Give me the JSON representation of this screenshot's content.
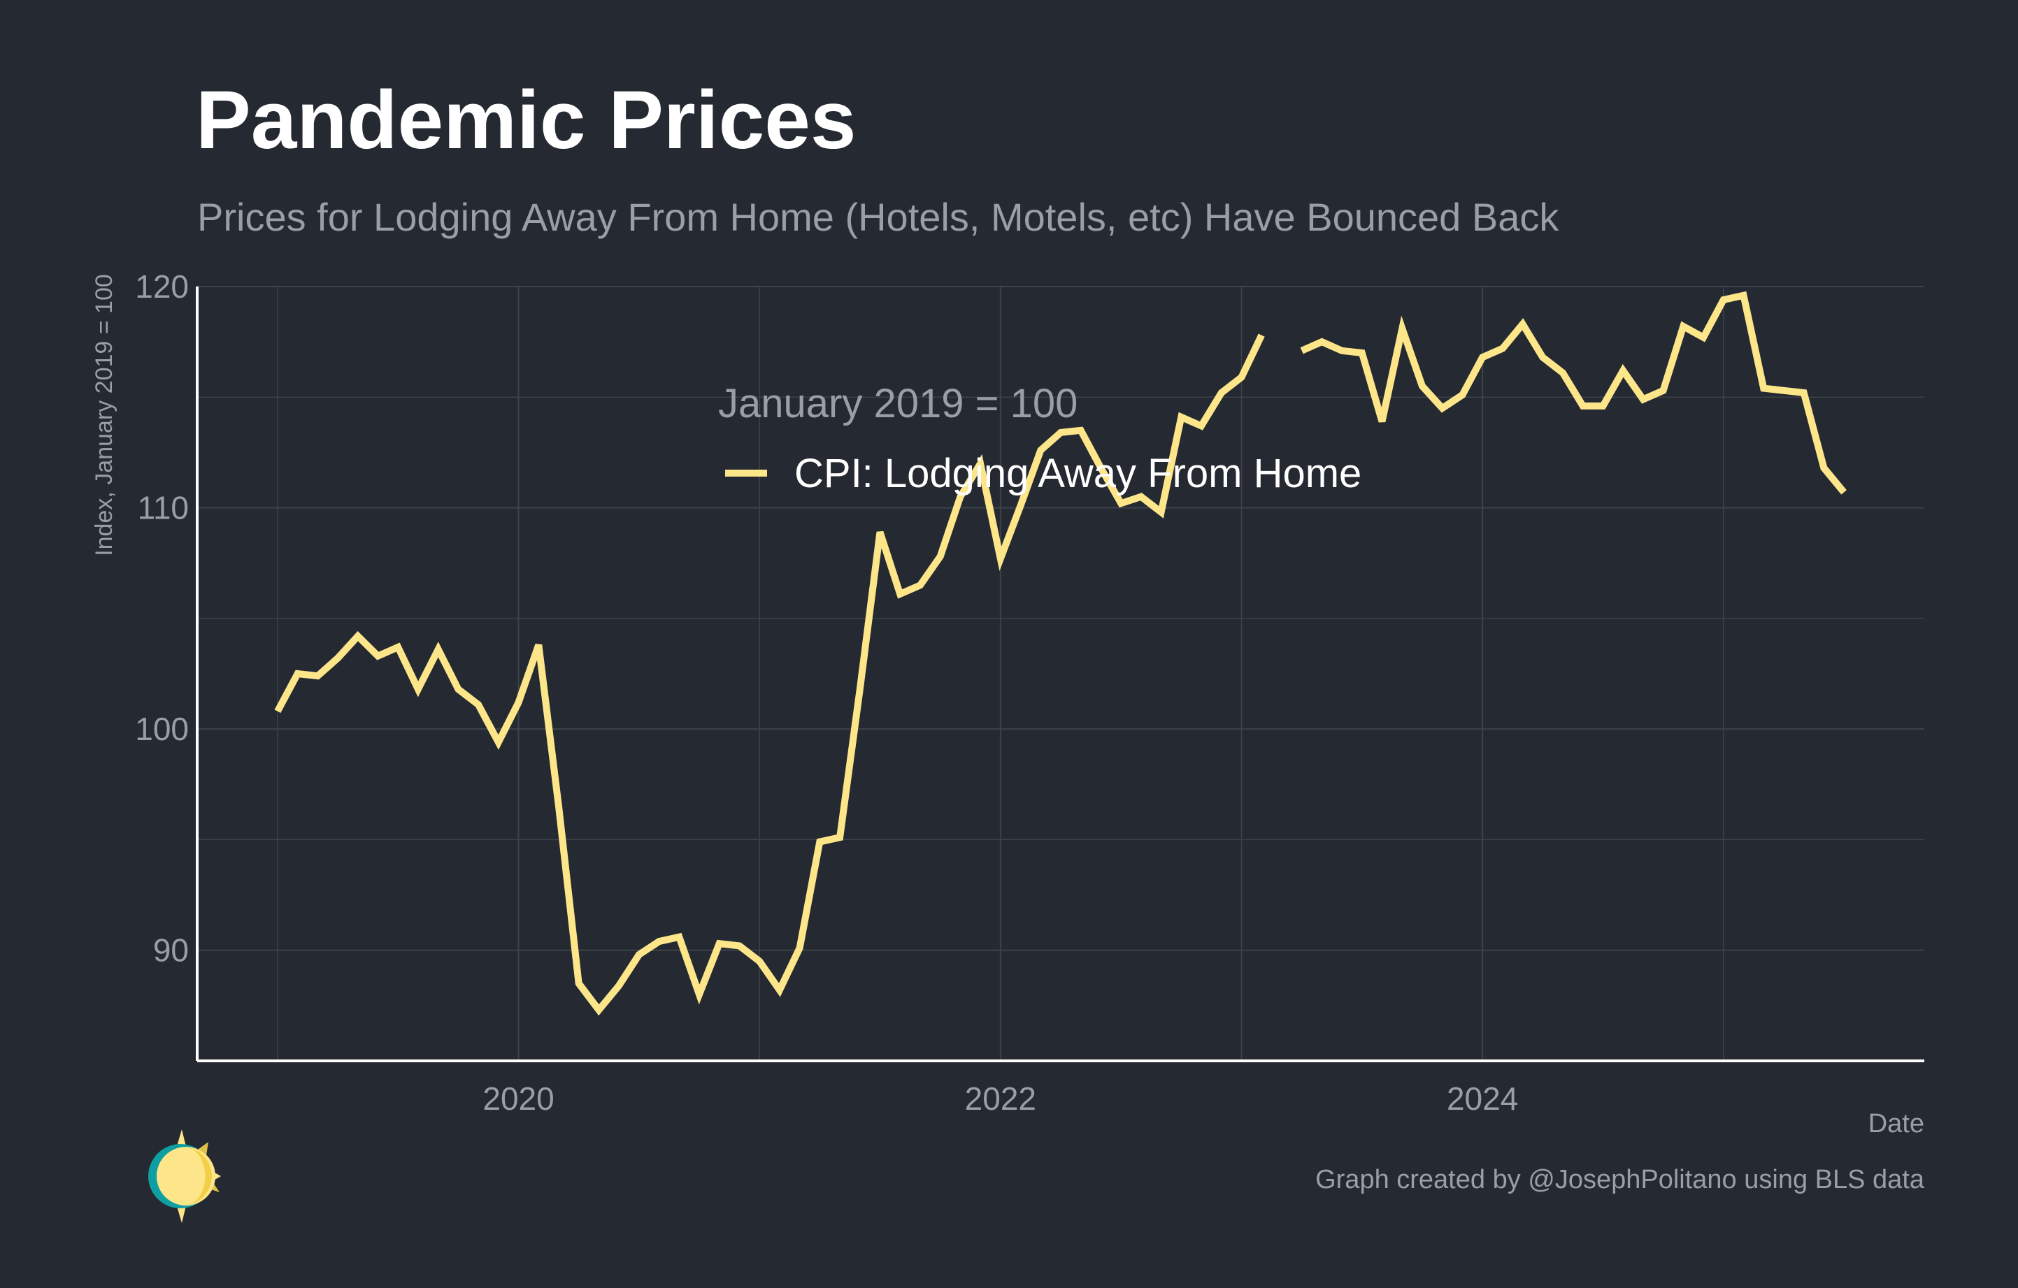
{
  "title": "Pandemic Prices",
  "subtitle": "Prices for Lodging Away From Home (Hotels, Motels, etc) Have Bounced Back",
  "caption": "Graph created by @JosephPolitano using BLS data",
  "logo_icon": "sun-moon-logo-icon",
  "colors": {
    "background": "#252931",
    "line": "#FDE68A",
    "grid": "#3d424b",
    "axis": "#ffffff",
    "tick_text": "#9a9ea6",
    "legend_text": "#ffffff"
  },
  "chart_data": {
    "type": "line",
    "xlabel": "Date",
    "ylabel": "Index, January 2019 = 100",
    "legend_title": "January 2019 = 100",
    "legend_position": "top-center",
    "grid": true,
    "ylim": [
      85,
      120
    ],
    "xlim": [
      "2018-09",
      "2025-11"
    ],
    "y_ticks": [
      90,
      100,
      110,
      120
    ],
    "y_tick_labels": [
      "90",
      "100",
      "110",
      "120"
    ],
    "x_ticks": [
      "2020-01",
      "2022-01",
      "2024-01"
    ],
    "x_tick_labels": [
      "2020",
      "2022",
      "2024"
    ],
    "series": [
      {
        "name": "CPI: Lodging Away From Home",
        "points": [
          [
            "2019-01",
            100.8
          ],
          [
            "2019-02",
            102.5
          ],
          [
            "2019-03",
            102.4
          ],
          [
            "2019-04",
            103.2
          ],
          [
            "2019-05",
            104.2
          ],
          [
            "2019-06",
            103.3
          ],
          [
            "2019-07",
            103.7
          ],
          [
            "2019-08",
            101.8
          ],
          [
            "2019-09",
            103.6
          ],
          [
            "2019-10",
            101.8
          ],
          [
            "2019-11",
            101.1
          ],
          [
            "2019-12",
            99.4
          ],
          [
            "2020-01",
            101.2
          ],
          [
            "2020-02",
            103.8
          ],
          [
            "2020-03",
            96.5
          ],
          [
            "2020-04",
            88.5
          ],
          [
            "2020-05",
            87.3
          ],
          [
            "2020-06",
            88.4
          ],
          [
            "2020-07",
            89.8
          ],
          [
            "2020-08",
            90.4
          ],
          [
            "2020-09",
            90.6
          ],
          [
            "2020-10",
            88.0
          ],
          [
            "2020-11",
            90.3
          ],
          [
            "2020-12",
            90.2
          ],
          [
            "2021-01",
            89.5
          ],
          [
            "2021-02",
            88.2
          ],
          [
            "2021-03",
            90.1
          ],
          [
            "2021-04",
            94.9
          ],
          [
            "2021-05",
            95.1
          ],
          [
            "2021-06",
            101.8
          ],
          [
            "2021-07",
            108.9
          ],
          [
            "2021-08",
            106.1
          ],
          [
            "2021-09",
            106.5
          ],
          [
            "2021-10",
            107.8
          ],
          [
            "2021-11",
            110.5
          ],
          [
            "2021-12",
            112.0
          ],
          [
            "2022-01",
            107.7
          ],
          [
            "2022-02",
            110.1
          ],
          [
            "2022-03",
            112.6
          ],
          [
            "2022-04",
            113.4
          ],
          [
            "2022-05",
            113.5
          ],
          [
            "2022-06",
            111.8
          ],
          [
            "2022-07",
            110.2
          ],
          [
            "2022-08",
            110.5
          ],
          [
            "2022-09",
            109.8
          ],
          [
            "2022-10",
            114.1
          ],
          [
            "2022-11",
            113.7
          ],
          [
            "2022-12",
            115.2
          ],
          [
            "2023-01",
            115.9
          ],
          [
            "2023-02",
            117.8
          ],
          [
            "2023-03",
            null
          ],
          [
            "2023-04",
            117.1
          ],
          [
            "2023-05",
            117.5
          ],
          [
            "2023-06",
            117.1
          ],
          [
            "2023-07",
            117.0
          ],
          [
            "2023-08",
            113.9
          ],
          [
            "2023-09",
            118.1
          ],
          [
            "2023-10",
            115.5
          ],
          [
            "2023-11",
            114.5
          ],
          [
            "2023-12",
            115.1
          ],
          [
            "2024-01",
            116.8
          ],
          [
            "2024-02",
            117.2
          ],
          [
            "2024-03",
            118.3
          ],
          [
            "2024-04",
            116.8
          ],
          [
            "2024-05",
            116.1
          ],
          [
            "2024-06",
            114.6
          ],
          [
            "2024-07",
            114.6
          ],
          [
            "2024-08",
            116.2
          ],
          [
            "2024-09",
            114.9
          ],
          [
            "2024-10",
            115.3
          ],
          [
            "2024-11",
            118.2
          ],
          [
            "2024-12",
            117.7
          ],
          [
            "2025-01",
            119.4
          ],
          [
            "2025-02",
            119.6
          ],
          [
            "2025-03",
            115.4
          ],
          [
            "2025-04",
            115.3
          ],
          [
            "2025-05",
            115.2
          ],
          [
            "2025-06",
            111.8
          ],
          [
            "2025-07",
            110.7
          ]
        ]
      }
    ]
  }
}
